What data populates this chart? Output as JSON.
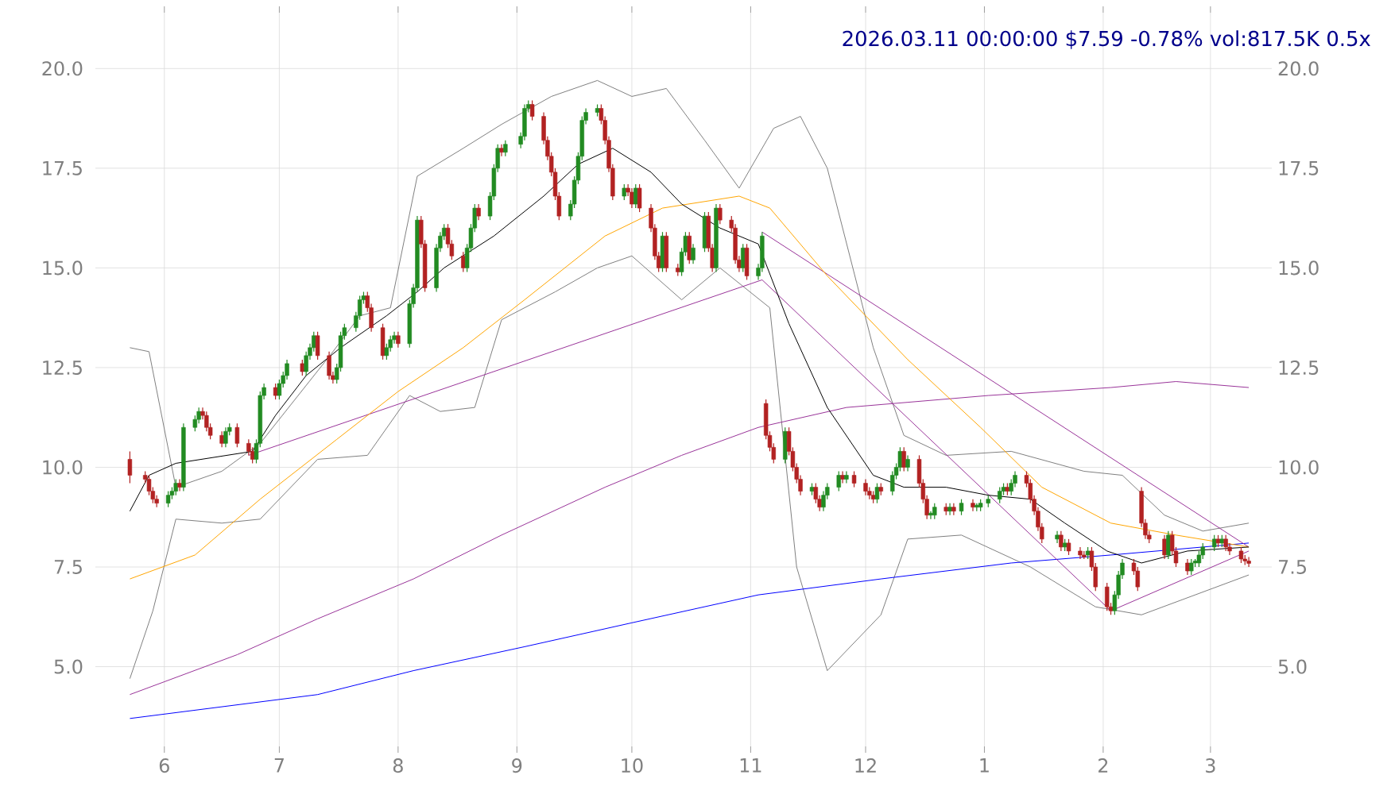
{
  "chart_data": {
    "type": "candlestick",
    "title": "2026.03.11 00:00:00 $7.59 -0.78% vol:817.5K 0.5x",
    "x": [
      "2025-05-23",
      "2025-05-27",
      "2025-05-28",
      "2025-05-29",
      "2025-05-30",
      "2025-06-02",
      "2025-06-03",
      "2025-06-04",
      "2025-06-05",
      "2025-06-06",
      "2025-06-09",
      "2025-06-10",
      "2025-06-11",
      "2025-06-12",
      "2025-06-13",
      "2025-06-16",
      "2025-06-17",
      "2025-06-18",
      "2025-06-20",
      "2025-06-23",
      "2025-06-24",
      "2025-06-25",
      "2025-06-26",
      "2025-06-27",
      "2025-06-30",
      "2025-07-01",
      "2025-07-02",
      "2025-07-03",
      "2025-07-07",
      "2025-07-08",
      "2025-07-09",
      "2025-07-10",
      "2025-07-11",
      "2025-07-14",
      "2025-07-15",
      "2025-07-16",
      "2025-07-17",
      "2025-07-18",
      "2025-07-21",
      "2025-07-22",
      "2025-07-23",
      "2025-07-24",
      "2025-07-25",
      "2025-07-28",
      "2025-07-29",
      "2025-07-30",
      "2025-07-31",
      "2025-08-01",
      "2025-08-04",
      "2025-08-05",
      "2025-08-06",
      "2025-08-07",
      "2025-08-08",
      "2025-08-11",
      "2025-08-12",
      "2025-08-13",
      "2025-08-14",
      "2025-08-15",
      "2025-08-18",
      "2025-08-19",
      "2025-08-20",
      "2025-08-21",
      "2025-08-22",
      "2025-08-25",
      "2025-08-26",
      "2025-08-27",
      "2025-08-28",
      "2025-08-29",
      "2025-09-02",
      "2025-09-03",
      "2025-09-04",
      "2025-09-05",
      "2025-09-08",
      "2025-09-09",
      "2025-09-10",
      "2025-09-11",
      "2025-09-12",
      "2025-09-15",
      "2025-09-16",
      "2025-09-17",
      "2025-09-18",
      "2025-09-19",
      "2025-09-22",
      "2025-09-23",
      "2025-09-24",
      "2025-09-25",
      "2025-09-26",
      "2025-09-29",
      "2025-09-30",
      "2025-10-01",
      "2025-10-02",
      "2025-10-03",
      "2025-10-06",
      "2025-10-07",
      "2025-10-08",
      "2025-10-09",
      "2025-10-10",
      "2025-10-13",
      "2025-10-14",
      "2025-10-15",
      "2025-10-16",
      "2025-10-17",
      "2025-10-20",
      "2025-10-21",
      "2025-10-22",
      "2025-10-23",
      "2025-10-24",
      "2025-10-27",
      "2025-10-28",
      "2025-10-29",
      "2025-10-30",
      "2025-10-31",
      "2025-11-03",
      "2025-11-04",
      "2025-11-05",
      "2025-11-06",
      "2025-11-07",
      "2025-11-10",
      "2025-11-11",
      "2025-11-12",
      "2025-11-13",
      "2025-11-14",
      "2025-11-17",
      "2025-11-18",
      "2025-11-19",
      "2025-11-20",
      "2025-11-21",
      "2025-11-24",
      "2025-11-25",
      "2025-11-26",
      "2025-11-28",
      "2025-12-01",
      "2025-12-02",
      "2025-12-03",
      "2025-12-04",
      "2025-12-05",
      "2025-12-08",
      "2025-12-09",
      "2025-12-10",
      "2025-12-11",
      "2025-12-12",
      "2025-12-15",
      "2025-12-16",
      "2025-12-17",
      "2025-12-18",
      "2025-12-19",
      "2025-12-22",
      "2025-12-23",
      "2025-12-24",
      "2025-12-26",
      "2025-12-29",
      "2025-12-30",
      "2025-12-31",
      "2026-01-02",
      "2026-01-05",
      "2026-01-06",
      "2026-01-07",
      "2026-01-08",
      "2026-01-09",
      "2026-01-12",
      "2026-01-13",
      "2026-01-14",
      "2026-01-15",
      "2026-01-16",
      "2026-01-20",
      "2026-01-21",
      "2026-01-22",
      "2026-01-23",
      "2026-01-26",
      "2026-01-27",
      "2026-01-28",
      "2026-01-29",
      "2026-01-30",
      "2026-02-02",
      "2026-02-03",
      "2026-02-04",
      "2026-02-05",
      "2026-02-06",
      "2026-02-09",
      "2026-02-10",
      "2026-02-11",
      "2026-02-12",
      "2026-02-13",
      "2026-02-17",
      "2026-02-18",
      "2026-02-19",
      "2026-02-20",
      "2026-02-23",
      "2026-02-24",
      "2026-02-25",
      "2026-02-26",
      "2026-02-27",
      "2026-03-02",
      "2026-03-03",
      "2026-03-04",
      "2026-03-05",
      "2026-03-06",
      "2026-03-09",
      "2026-03-10",
      "2026-03-11"
    ],
    "ohlc": [
      [
        10.2,
        10.4,
        9.6,
        9.8
      ],
      [
        9.8,
        9.9,
        9.6,
        9.7
      ],
      [
        9.7,
        9.8,
        9.3,
        9.4
      ],
      [
        9.4,
        9.5,
        9.1,
        9.2
      ],
      [
        9.2,
        9.3,
        9.0,
        9.1
      ],
      [
        9.1,
        9.4,
        9.0,
        9.3
      ],
      [
        9.3,
        9.5,
        9.2,
        9.4
      ],
      [
        9.4,
        9.7,
        9.3,
        9.6
      ],
      [
        9.6,
        9.7,
        9.4,
        9.5
      ],
      [
        9.5,
        11.1,
        9.4,
        11.0
      ],
      [
        11.0,
        11.3,
        10.9,
        11.2
      ],
      [
        11.2,
        11.5,
        11.1,
        11.4
      ],
      [
        11.4,
        11.5,
        11.2,
        11.3
      ],
      [
        11.3,
        11.4,
        10.9,
        11.0
      ],
      [
        11.0,
        11.1,
        10.7,
        10.8
      ],
      [
        10.8,
        10.9,
        10.5,
        10.6
      ],
      [
        10.6,
        11.0,
        10.5,
        10.9
      ],
      [
        10.9,
        11.1,
        10.8,
        11.0
      ],
      [
        11.0,
        11.1,
        10.5,
        10.6
      ],
      [
        10.6,
        10.7,
        10.3,
        10.4
      ],
      [
        10.4,
        10.5,
        10.1,
        10.2
      ],
      [
        10.2,
        10.7,
        10.1,
        10.6
      ],
      [
        10.6,
        11.9,
        10.5,
        11.8
      ],
      [
        11.8,
        12.1,
        11.7,
        12.0
      ],
      [
        12.0,
        12.1,
        11.7,
        11.8
      ],
      [
        11.8,
        12.2,
        11.7,
        12.1
      ],
      [
        12.1,
        12.4,
        12.0,
        12.3
      ],
      [
        12.3,
        12.7,
        12.2,
        12.6
      ],
      [
        12.6,
        12.7,
        12.3,
        12.4
      ],
      [
        12.4,
        12.9,
        12.3,
        12.8
      ],
      [
        12.8,
        13.1,
        12.7,
        13.0
      ],
      [
        13.0,
        13.4,
        12.9,
        13.3
      ],
      [
        13.3,
        13.4,
        12.7,
        12.8
      ],
      [
        12.8,
        12.9,
        12.2,
        12.3
      ],
      [
        12.3,
        12.4,
        12.1,
        12.2
      ],
      [
        12.2,
        12.6,
        12.1,
        12.5
      ],
      [
        12.5,
        13.4,
        12.4,
        13.3
      ],
      [
        13.3,
        13.6,
        13.2,
        13.5
      ],
      [
        13.5,
        13.9,
        13.4,
        13.8
      ],
      [
        13.8,
        14.3,
        13.7,
        14.2
      ],
      [
        14.2,
        14.4,
        14.1,
        14.3
      ],
      [
        14.3,
        14.4,
        13.9,
        14.0
      ],
      [
        14.0,
        14.1,
        13.4,
        13.5
      ],
      [
        13.5,
        13.6,
        12.7,
        12.8
      ],
      [
        12.8,
        13.1,
        12.7,
        13.0
      ],
      [
        13.0,
        13.3,
        12.9,
        13.2
      ],
      [
        13.2,
        13.4,
        13.1,
        13.3
      ],
      [
        13.3,
        13.4,
        13.0,
        13.1
      ],
      [
        13.1,
        14.2,
        13.0,
        14.1
      ],
      [
        14.1,
        14.6,
        14.0,
        14.5
      ],
      [
        14.5,
        16.3,
        14.4,
        16.2
      ],
      [
        16.2,
        16.3,
        15.5,
        15.6
      ],
      [
        15.6,
        15.7,
        14.4,
        14.5
      ],
      [
        14.5,
        15.6,
        14.4,
        15.5
      ],
      [
        15.5,
        15.9,
        15.4,
        15.8
      ],
      [
        15.8,
        16.1,
        15.7,
        16.0
      ],
      [
        16.0,
        16.1,
        15.5,
        15.6
      ],
      [
        15.6,
        15.7,
        15.2,
        15.3
      ],
      [
        15.3,
        15.4,
        14.9,
        15.0
      ],
      [
        15.0,
        15.6,
        14.9,
        15.5
      ],
      [
        15.5,
        16.1,
        15.4,
        16.0
      ],
      [
        16.0,
        16.6,
        15.9,
        16.5
      ],
      [
        16.5,
        16.6,
        16.2,
        16.3
      ],
      [
        16.3,
        16.9,
        16.2,
        16.8
      ],
      [
        16.8,
        17.6,
        16.7,
        17.5
      ],
      [
        17.5,
        18.1,
        17.4,
        18.0
      ],
      [
        18.0,
        18.1,
        17.8,
        17.9
      ],
      [
        17.9,
        18.2,
        17.8,
        18.1
      ],
      [
        18.1,
        18.4,
        18.0,
        18.3
      ],
      [
        18.3,
        19.1,
        18.2,
        19.0
      ],
      [
        19.0,
        19.2,
        18.9,
        19.1
      ],
      [
        19.1,
        19.2,
        18.7,
        18.8
      ],
      [
        18.8,
        18.9,
        18.1,
        18.2
      ],
      [
        18.2,
        18.3,
        17.7,
        17.8
      ],
      [
        17.8,
        17.9,
        17.3,
        17.4
      ],
      [
        17.4,
        17.5,
        16.7,
        16.8
      ],
      [
        16.8,
        16.9,
        16.2,
        16.3
      ],
      [
        16.3,
        16.7,
        16.2,
        16.6
      ],
      [
        16.6,
        17.3,
        16.5,
        17.2
      ],
      [
        17.2,
        17.9,
        17.1,
        17.8
      ],
      [
        17.8,
        18.8,
        17.7,
        18.7
      ],
      [
        18.7,
        19.0,
        18.6,
        18.9
      ],
      [
        18.9,
        19.1,
        18.8,
        19.0
      ],
      [
        19.0,
        19.1,
        18.6,
        18.7
      ],
      [
        18.7,
        18.8,
        18.1,
        18.2
      ],
      [
        18.2,
        18.3,
        17.4,
        17.5
      ],
      [
        17.5,
        17.6,
        16.7,
        16.8
      ],
      [
        16.8,
        17.1,
        16.7,
        17.0
      ],
      [
        17.0,
        17.1,
        16.8,
        16.9
      ],
      [
        16.9,
        17.0,
        16.5,
        16.6
      ],
      [
        16.6,
        17.1,
        16.5,
        17.0
      ],
      [
        17.0,
        17.1,
        16.4,
        16.5
      ],
      [
        16.5,
        16.6,
        15.9,
        16.0
      ],
      [
        16.0,
        16.1,
        15.2,
        15.3
      ],
      [
        15.3,
        15.4,
        14.9,
        15.0
      ],
      [
        15.0,
        15.9,
        14.9,
        15.8
      ],
      [
        15.8,
        15.9,
        14.9,
        15.0
      ],
      [
        15.0,
        15.1,
        14.8,
        14.9
      ],
      [
        14.9,
        15.5,
        14.8,
        15.4
      ],
      [
        15.4,
        15.9,
        15.3,
        15.8
      ],
      [
        15.8,
        15.9,
        15.1,
        15.2
      ],
      [
        15.2,
        15.6,
        15.1,
        15.5
      ],
      [
        15.5,
        16.4,
        15.4,
        16.3
      ],
      [
        16.3,
        16.4,
        15.4,
        15.5
      ],
      [
        15.5,
        15.6,
        14.9,
        15.0
      ],
      [
        15.0,
        16.6,
        14.9,
        16.5
      ],
      [
        16.5,
        16.6,
        16.1,
        16.2
      ],
      [
        16.2,
        16.3,
        15.9,
        16.0
      ],
      [
        16.0,
        16.1,
        15.1,
        15.2
      ],
      [
        15.2,
        15.3,
        14.9,
        15.0
      ],
      [
        15.0,
        15.6,
        14.9,
        15.5
      ],
      [
        15.5,
        15.6,
        14.7,
        14.8
      ],
      [
        14.8,
        15.1,
        14.7,
        15.0
      ],
      [
        15.0,
        15.9,
        14.9,
        15.8
      ],
      [
        11.6,
        11.7,
        10.7,
        10.8
      ],
      [
        10.8,
        10.9,
        10.4,
        10.5
      ],
      [
        10.5,
        10.6,
        10.1,
        10.2
      ],
      [
        10.2,
        11.0,
        10.1,
        10.9
      ],
      [
        10.9,
        11.0,
        10.3,
        10.4
      ],
      [
        10.4,
        10.5,
        9.9,
        10.0
      ],
      [
        10.0,
        10.1,
        9.6,
        9.7
      ],
      [
        9.7,
        9.8,
        9.3,
        9.4
      ],
      [
        9.4,
        9.6,
        9.3,
        9.5
      ],
      [
        9.5,
        9.6,
        9.1,
        9.2
      ],
      [
        9.2,
        9.3,
        8.9,
        9.0
      ],
      [
        9.0,
        9.4,
        8.9,
        9.3
      ],
      [
        9.3,
        9.6,
        9.2,
        9.5
      ],
      [
        9.5,
        9.9,
        9.4,
        9.8
      ],
      [
        9.8,
        9.9,
        9.6,
        9.7
      ],
      [
        9.7,
        9.9,
        9.6,
        9.8
      ],
      [
        9.8,
        9.9,
        9.5,
        9.6
      ],
      [
        9.6,
        9.7,
        9.3,
        9.4
      ],
      [
        9.4,
        9.5,
        9.2,
        9.3
      ],
      [
        9.3,
        9.4,
        9.1,
        9.2
      ],
      [
        9.2,
        9.6,
        9.1,
        9.5
      ],
      [
        9.5,
        9.6,
        9.3,
        9.4
      ],
      [
        9.4,
        9.9,
        9.3,
        9.8
      ],
      [
        9.8,
        10.1,
        9.7,
        10.0
      ],
      [
        10.0,
        10.5,
        9.9,
        10.4
      ],
      [
        10.4,
        10.5,
        9.9,
        10.0
      ],
      [
        10.0,
        10.3,
        9.9,
        10.2
      ],
      [
        10.2,
        10.3,
        9.5,
        9.6
      ],
      [
        9.6,
        9.7,
        9.1,
        9.2
      ],
      [
        9.2,
        9.3,
        8.7,
        8.8
      ],
      [
        8.8,
        8.9,
        8.7,
        8.85
      ],
      [
        8.8,
        9.1,
        8.7,
        9.0
      ],
      [
        9.0,
        9.1,
        8.8,
        8.9
      ],
      [
        8.9,
        9.1,
        8.8,
        9.0
      ],
      [
        9.0,
        9.1,
        8.8,
        8.9
      ],
      [
        8.9,
        9.2,
        8.8,
        9.1
      ],
      [
        9.1,
        9.2,
        8.9,
        9.0
      ],
      [
        9.0,
        9.1,
        8.9,
        9.05
      ],
      [
        9.0,
        9.2,
        8.9,
        9.1
      ],
      [
        9.1,
        9.3,
        9.0,
        9.2
      ],
      [
        9.2,
        9.5,
        9.1,
        9.4
      ],
      [
        9.4,
        9.6,
        9.3,
        9.5
      ],
      [
        9.5,
        9.6,
        9.3,
        9.4
      ],
      [
        9.4,
        9.7,
        9.3,
        9.6
      ],
      [
        9.6,
        9.9,
        9.5,
        9.8
      ],
      [
        9.8,
        9.9,
        9.5,
        9.6
      ],
      [
        9.6,
        9.7,
        9.1,
        9.2
      ],
      [
        9.2,
        9.3,
        8.8,
        8.9
      ],
      [
        8.9,
        9.0,
        8.4,
        8.5
      ],
      [
        8.5,
        8.6,
        8.1,
        8.2
      ],
      [
        8.2,
        8.4,
        8.1,
        8.3
      ],
      [
        8.3,
        8.4,
        7.9,
        8.0
      ],
      [
        8.0,
        8.2,
        7.9,
        8.1
      ],
      [
        8.1,
        8.2,
        7.8,
        7.9
      ],
      [
        7.9,
        8.0,
        7.7,
        7.8
      ],
      [
        7.8,
        7.9,
        7.7,
        7.75
      ],
      [
        7.8,
        8.0,
        7.7,
        7.9
      ],
      [
        7.9,
        8.0,
        7.4,
        7.5
      ],
      [
        7.5,
        7.6,
        6.9,
        7.0
      ],
      [
        7.0,
        7.1,
        6.4,
        6.5
      ],
      [
        6.5,
        6.6,
        6.3,
        6.4
      ],
      [
        6.4,
        6.9,
        6.3,
        6.8
      ],
      [
        6.8,
        7.4,
        6.7,
        7.3
      ],
      [
        7.3,
        7.7,
        7.2,
        7.6
      ],
      [
        7.6,
        7.7,
        7.3,
        7.4
      ],
      [
        7.4,
        7.5,
        6.9,
        7.0
      ],
      [
        9.4,
        9.5,
        8.5,
        8.6
      ],
      [
        8.6,
        8.7,
        8.2,
        8.3
      ],
      [
        8.3,
        8.4,
        8.1,
        8.2
      ],
      [
        8.2,
        8.3,
        7.7,
        7.8
      ],
      [
        7.8,
        8.4,
        7.7,
        8.3
      ],
      [
        8.3,
        8.4,
        7.8,
        7.9
      ],
      [
        7.9,
        8.0,
        7.5,
        7.6
      ],
      [
        7.6,
        7.7,
        7.3,
        7.4
      ],
      [
        7.4,
        7.7,
        7.3,
        7.6
      ],
      [
        7.6,
        7.7,
        7.5,
        7.65
      ],
      [
        7.6,
        7.9,
        7.5,
        7.8
      ],
      [
        7.8,
        8.1,
        7.7,
        8.0
      ],
      [
        8.0,
        8.3,
        7.9,
        8.2
      ],
      [
        8.2,
        8.3,
        8.0,
        8.1
      ],
      [
        8.1,
        8.3,
        8.0,
        8.2
      ],
      [
        8.2,
        8.3,
        7.9,
        8.0
      ],
      [
        8.0,
        8.1,
        7.8,
        7.9
      ],
      [
        7.9,
        8.0,
        7.6,
        7.7
      ],
      [
        7.7,
        7.8,
        7.55,
        7.65
      ],
      [
        7.65,
        7.75,
        7.5,
        7.59
      ]
    ],
    "series": [
      {
        "type": "line",
        "color": "#808080",
        "x": [
          "2025-05-23",
          "2025-05-28",
          "2025-06-04",
          "2025-06-16",
          "2025-06-26",
          "2025-07-15",
          "2025-07-22",
          "2025-07-30",
          "2025-08-06",
          "2025-08-18",
          "2025-08-28",
          "2025-09-10",
          "2025-09-22",
          "2025-10-01",
          "2025-10-10",
          "2025-10-20",
          "2025-10-29",
          "2025-11-07",
          "2025-11-14",
          "2025-11-21",
          "2025-12-03",
          "2025-12-11",
          "2025-12-22",
          "2026-01-08",
          "2026-01-27",
          "2026-02-06",
          "2026-02-17",
          "2026-02-27",
          "2026-03-11"
        ],
        "values": [
          13.0,
          12.9,
          9.5,
          9.9,
          10.6,
          12.9,
          13.8,
          14.0,
          17.3,
          18.0,
          18.6,
          19.3,
          19.7,
          19.3,
          19.5,
          18.2,
          17.0,
          18.5,
          18.8,
          17.5,
          13.0,
          10.8,
          10.3,
          10.4,
          9.9,
          9.8,
          8.8,
          8.4,
          8.6
        ]
      },
      {
        "type": "line",
        "color": "#808080",
        "x": [
          "2025-05-23",
          "2025-05-29",
          "2025-06-04",
          "2025-06-16",
          "2025-06-26",
          "2025-07-11",
          "2025-07-24",
          "2025-08-04",
          "2025-08-12",
          "2025-08-21",
          "2025-08-28",
          "2025-09-11",
          "2025-09-22",
          "2025-10-01",
          "2025-10-14",
          "2025-10-24",
          "2025-11-06",
          "2025-11-13",
          "2025-11-21",
          "2025-12-05",
          "2025-12-12",
          "2025-12-26",
          "2026-01-13",
          "2026-01-30",
          "2026-02-11",
          "2026-02-25",
          "2026-03-11"
        ],
        "values": [
          4.7,
          6.4,
          8.7,
          8.6,
          8.7,
          10.2,
          10.3,
          11.8,
          11.4,
          11.5,
          13.7,
          14.4,
          15.0,
          15.3,
          14.2,
          15.0,
          14.0,
          7.5,
          4.9,
          6.3,
          8.2,
          8.3,
          7.5,
          6.5,
          6.3,
          6.8,
          7.3
        ]
      },
      {
        "type": "line",
        "color": "#0000ff",
        "x": [
          "2025-05-23",
          "2025-07-11",
          "2025-08-05",
          "2025-09-03",
          "2025-10-01",
          "2025-11-03",
          "2025-12-05",
          "2026-01-08",
          "2026-02-03",
          "2026-03-11"
        ],
        "values": [
          3.7,
          4.3,
          4.9,
          5.5,
          6.1,
          6.8,
          7.2,
          7.6,
          7.8,
          8.1
        ]
      },
      {
        "type": "line",
        "color": "#993399",
        "x": [
          "2025-05-23",
          "2025-06-20",
          "2025-07-11",
          "2025-08-05",
          "2025-08-28",
          "2025-09-24",
          "2025-10-14",
          "2025-11-03",
          "2025-11-26",
          "2026-01-02",
          "2026-02-03",
          "2026-02-20",
          "2026-03-11"
        ],
        "values": [
          4.3,
          5.3,
          6.2,
          7.2,
          8.3,
          9.5,
          10.3,
          11.0,
          11.5,
          11.8,
          12.0,
          12.15,
          12.0
        ]
      },
      {
        "type": "line",
        "color": "#993399",
        "x": [
          "2025-06-23",
          "2025-11-04"
        ],
        "values": [
          10.3,
          14.7
        ]
      },
      {
        "type": "line",
        "color": "#993399",
        "x": [
          "2025-11-04",
          "2026-03-11"
        ],
        "values": [
          15.9,
          8.0
        ]
      },
      {
        "type": "line",
        "color": "#993399",
        "x": [
          "2025-11-04",
          "2026-02-03",
          "2026-03-11"
        ],
        "values": [
          14.7,
          6.4,
          7.9
        ]
      },
      {
        "type": "line",
        "color": "#ffa500",
        "x": [
          "2025-05-23",
          "2025-06-09",
          "2025-06-26",
          "2025-07-16",
          "2025-08-01",
          "2025-08-18",
          "2025-09-03",
          "2025-09-24",
          "2025-10-09",
          "2025-10-29",
          "2025-11-06",
          "2025-11-21",
          "2025-12-12",
          "2025-12-31",
          "2026-01-16",
          "2026-02-03",
          "2026-02-20",
          "2026-03-11"
        ],
        "values": [
          7.2,
          7.8,
          9.2,
          10.7,
          11.9,
          13.0,
          14.2,
          15.8,
          16.5,
          16.8,
          16.5,
          14.8,
          12.7,
          11.0,
          9.5,
          8.6,
          8.3,
          8.0
        ]
      },
      {
        "type": "line",
        "color": "#000000",
        "x": [
          "2025-05-23",
          "2025-05-28",
          "2025-06-04",
          "2025-06-24",
          "2025-06-30",
          "2025-07-08",
          "2025-07-17",
          "2025-07-29",
          "2025-08-06",
          "2025-08-13",
          "2025-08-26",
          "2025-09-08",
          "2025-09-17",
          "2025-09-26",
          "2025-10-06",
          "2025-10-14",
          "2025-10-24",
          "2025-11-03",
          "2025-11-11",
          "2025-11-21",
          "2025-12-03",
          "2025-12-11",
          "2025-12-22",
          "2026-01-02",
          "2026-01-13",
          "2026-01-22",
          "2026-02-02",
          "2026-02-11",
          "2026-02-23",
          "2026-03-11"
        ],
        "values": [
          8.9,
          9.8,
          10.1,
          10.4,
          11.3,
          12.3,
          13.0,
          13.8,
          14.4,
          15.0,
          15.8,
          16.8,
          17.6,
          18.0,
          17.4,
          16.6,
          16.0,
          15.6,
          13.6,
          11.5,
          9.8,
          9.5,
          9.5,
          9.3,
          9.2,
          8.6,
          7.9,
          7.6,
          7.9,
          8.0
        ]
      }
    ],
    "xlim": [
      "2025-05-14",
      "2026-03-17"
    ],
    "ylim": [
      3.0,
      21.4
    ],
    "xticks": [
      {
        "value": "2025-06",
        "label": "6"
      },
      {
        "value": "2025-07",
        "label": "7"
      },
      {
        "value": "2025-08",
        "label": "8"
      },
      {
        "value": "2025-09",
        "label": "9"
      },
      {
        "value": "2025-10",
        "label": "10"
      },
      {
        "value": "2025-11",
        "label": "11"
      },
      {
        "value": "2025-12",
        "label": "12"
      },
      {
        "value": "2026-01",
        "label": "1"
      },
      {
        "value": "2026-02",
        "label": "2"
      },
      {
        "value": "2026-03",
        "label": "3"
      }
    ],
    "yticks": [
      {
        "value": 5,
        "label": "5.0"
      },
      {
        "value": 7.5,
        "label": "7.5"
      },
      {
        "value": 10,
        "label": "10.0"
      },
      {
        "value": 12.5,
        "label": "12.5"
      },
      {
        "value": 15,
        "label": "15.0"
      },
      {
        "value": 17.5,
        "label": "17.5"
      },
      {
        "value": 20,
        "label": "20.0"
      }
    ],
    "y2lim": [
      3.0,
      21.4
    ],
    "y2ticks": [
      {
        "value": 5,
        "label": "5.0"
      },
      {
        "value": 7.5,
        "label": "7.5"
      },
      {
        "value": 10,
        "label": "10.0"
      },
      {
        "value": 12.5,
        "label": "12.5"
      },
      {
        "value": 15,
        "label": "15.0"
      },
      {
        "value": 17.5,
        "label": "17.5"
      },
      {
        "value": 20,
        "label": "20.0"
      }
    ],
    "grid": true
  }
}
